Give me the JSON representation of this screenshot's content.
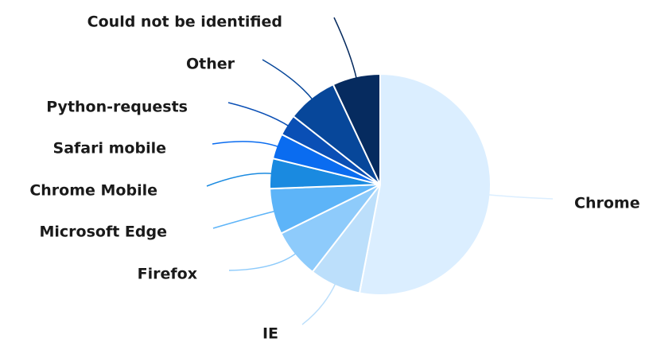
{
  "chart_data": {
    "type": "pie",
    "categories": [
      "Chrome",
      "IE",
      "Firefox",
      "Microsoft Edge",
      "Chrome Mobile",
      "Safari mobile",
      "Python-requests",
      "Other",
      "Could not be identified"
    ],
    "values": [
      53,
      7.5,
      7.2,
      6.7,
      4.4,
      3.7,
      3.1,
      7.4,
      7.0
    ],
    "colors": [
      "#dbeeff",
      "#bcdffb",
      "#8ecbfb",
      "#5db4f8",
      "#1a8ae0",
      "#0a6cf0",
      "#0a4fb5",
      "#07479a",
      "#062b5f"
    ]
  }
}
